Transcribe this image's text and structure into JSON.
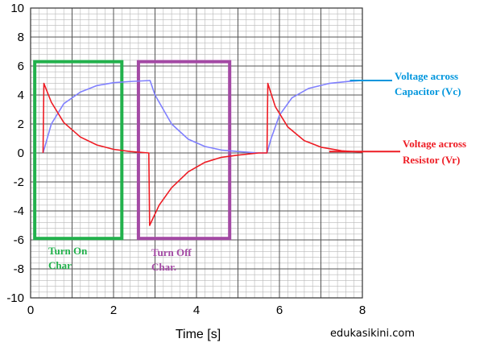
{
  "chart_data": {
    "type": "line",
    "xlabel": "Time [s]",
    "ylabel": "",
    "xlim": [
      0,
      8
    ],
    "ylim": [
      -10,
      10
    ],
    "xticks": [
      "0",
      "2",
      "4",
      "6",
      "8"
    ],
    "yticks": [
      "10",
      "8",
      "6",
      "4",
      "2",
      "0",
      "-2",
      "-4",
      "-6",
      "-8",
      "-10"
    ],
    "grid": true,
    "series": [
      {
        "name": "Voltage across Capacitor (Vc)",
        "color": "#8080ff",
        "x": [
          0.3,
          0.5,
          0.8,
          1.2,
          1.6,
          2.0,
          2.4,
          2.88,
          3.0,
          3.4,
          3.8,
          4.2,
          4.6,
          5.0,
          5.5,
          5.7,
          5.8,
          6.0,
          6.3,
          6.7,
          7.2,
          7.7,
          8.0
        ],
        "y": [
          0,
          2.0,
          3.4,
          4.2,
          4.65,
          4.85,
          4.93,
          5.0,
          4.0,
          2.0,
          0.95,
          0.45,
          0.2,
          0.1,
          0.0,
          0.0,
          1.0,
          2.6,
          3.8,
          4.45,
          4.8,
          4.95,
          5.0
        ]
      },
      {
        "name": "Voltage across Resistor (Vr)",
        "color": "#ee1c24",
        "x": [
          0.3,
          0.32,
          0.5,
          0.8,
          1.2,
          1.6,
          2.0,
          2.4,
          2.85,
          2.87,
          3.1,
          3.4,
          3.8,
          4.2,
          4.6,
          5.0,
          5.5,
          5.7,
          5.72,
          5.9,
          6.2,
          6.6,
          7.0,
          7.5,
          8.0
        ],
        "y": [
          0,
          4.8,
          3.5,
          2.1,
          1.1,
          0.55,
          0.25,
          0.1,
          0.0,
          -5.0,
          -3.6,
          -2.4,
          -1.3,
          -0.65,
          -0.3,
          -0.15,
          0.0,
          0.0,
          4.8,
          3.2,
          1.8,
          0.85,
          0.4,
          0.15,
          0.05
        ]
      }
    ],
    "annotations": {
      "turn_on": "Turn On\nChar",
      "turn_off": "Turn Off\nChar.",
      "vc_label": "Voltage across\nCapacitor (Vc)",
      "vr_label": "Voltage across\nResistor (Vr)"
    },
    "annotation_colors": {
      "turn_on": "#22b14c",
      "turn_off": "#a349a4",
      "vc": "#0096dd",
      "vr": "#ee1c24"
    },
    "boxes": [
      {
        "name": "turn-on-box",
        "x": [
          0.1,
          2.2
        ],
        "y": [
          -5.9,
          6.3
        ]
      },
      {
        "name": "turn-off-box",
        "x": [
          2.6,
          4.8
        ],
        "y": [
          -5.9,
          6.3
        ]
      }
    ],
    "callout_points": {
      "vc": {
        "x": 7.7,
        "y": 5.0
      },
      "vr": {
        "x": 7.2,
        "y": 0.1
      }
    }
  },
  "watermark": "edukasikini.com"
}
